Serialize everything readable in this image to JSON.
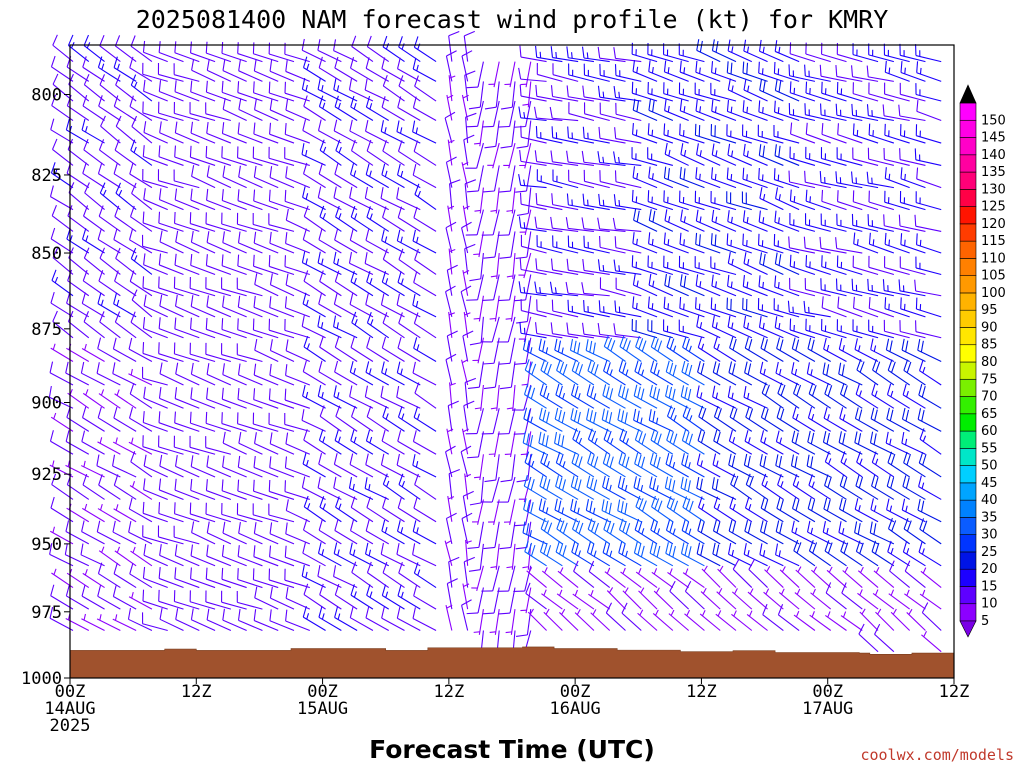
{
  "chart_data": {
    "type": "wind-barb-profile",
    "title": "2025081400 NAM forecast wind profile (kt) for KMRY",
    "xlabel": "Forecast Time (UTC)",
    "ylabel": "",
    "credit": "coolwx.com/models",
    "x_range_hours": [
      0,
      84
    ],
    "y_range_hpa": [
      1000,
      785
    ],
    "y_scale": "log-pressure",
    "y_ticks": [
      {
        "value": 800,
        "label": "800"
      },
      {
        "value": 825,
        "label": "825"
      },
      {
        "value": 850,
        "label": "850"
      },
      {
        "value": 875,
        "label": "875"
      },
      {
        "value": 900,
        "label": "900"
      },
      {
        "value": 925,
        "label": "925"
      },
      {
        "value": 950,
        "label": "950"
      },
      {
        "value": 975,
        "label": "975"
      },
      {
        "value": 1000,
        "label": "1000"
      }
    ],
    "x_ticks": [
      {
        "hour": 0,
        "line1": "00Z",
        "line2": "14AUG",
        "line3": "2025"
      },
      {
        "hour": 12,
        "line1": "12Z",
        "line2": "",
        "line3": ""
      },
      {
        "hour": 24,
        "line1": "00Z",
        "line2": "15AUG",
        "line3": ""
      },
      {
        "hour": 36,
        "line1": "12Z",
        "line2": "",
        "line3": ""
      },
      {
        "hour": 48,
        "line1": "00Z",
        "line2": "16AUG",
        "line3": ""
      },
      {
        "hour": 60,
        "line1": "12Z",
        "line2": "",
        "line3": ""
      },
      {
        "hour": 72,
        "line1": "00Z",
        "line2": "17AUG",
        "line3": ""
      },
      {
        "hour": 84,
        "line1": "12Z",
        "line2": "",
        "line3": ""
      }
    ],
    "surface_pressure": {
      "hours": [
        0,
        6,
        9,
        10,
        12,
        18,
        21,
        27,
        30,
        34,
        43,
        46,
        52,
        54,
        58,
        61,
        63,
        67,
        69,
        75,
        76,
        79,
        80,
        84
      ],
      "hpa": [
        989.5,
        989.5,
        989,
        989,
        989.5,
        989.5,
        988.8,
        988.8,
        989.5,
        988.5,
        988.2,
        988.8,
        989.4,
        989.4,
        990.0,
        990.0,
        989.6,
        990.3,
        990.3,
        990.5,
        991.0,
        991.0,
        990.5,
        991.5
      ]
    },
    "colorbar": {
      "labels": [
        "5",
        "10",
        "15",
        "20",
        "25",
        "30",
        "35",
        "40",
        "45",
        "50",
        "55",
        "60",
        "65",
        "70",
        "75",
        "80",
        "85",
        "90",
        "95",
        "100",
        "105",
        "110",
        "115",
        "120",
        "125",
        "130",
        "135",
        "140",
        "145",
        "150"
      ],
      "colors": [
        "#8c00ff",
        "#5e00ff",
        "#1c00ff",
        "#0014e6",
        "#0035ff",
        "#0a5cff",
        "#0082ff",
        "#00a5ff",
        "#00cfff",
        "#00e6c8",
        "#00ee78",
        "#00ee00",
        "#33f000",
        "#7af000",
        "#c8f500",
        "#ffff00",
        "#ffe600",
        "#ffcc00",
        "#ffb300",
        "#ff9900",
        "#ff8000",
        "#ff6400",
        "#ff3c00",
        "#ff1400",
        "#ff0046",
        "#ff0078",
        "#ff00a0",
        "#ff00c8",
        "#ff00e6",
        "#ff00ff"
      ],
      "lower_arrow_color": "#7a00e6",
      "upper_arrow_color": "#000000"
    },
    "surface_color": "#a0522d",
    "columns_hours_step": 1.5,
    "levels_hpa": [
      790,
      796,
      802,
      808,
      815,
      822,
      829,
      836,
      843,
      850,
      857,
      864,
      871,
      878,
      886,
      894,
      902,
      910,
      918,
      926,
      934,
      942,
      950,
      958,
      966,
      974,
      982,
      990,
      998
    ],
    "wind_regimes": [
      {
        "hours": [
          0,
          9
        ],
        "levels": [
          785,
          880
        ],
        "dir_deg": 305,
        "speed_kt": 13
      },
      {
        "hours": [
          0,
          9
        ],
        "levels": [
          880,
          1000
        ],
        "dir_deg": 300,
        "speed_kt": 10
      },
      {
        "hours": [
          9,
          24
        ],
        "levels": [
          785,
          1000
        ],
        "dir_deg": 290,
        "speed_kt": 12
      },
      {
        "hours": [
          24,
          36
        ],
        "levels": [
          785,
          1000
        ],
        "dir_deg": 300,
        "speed_kt": 14
      },
      {
        "hours": [
          36,
          38
        ],
        "levels": [
          785,
          1000
        ],
        "dir_deg": 350,
        "speed_kt": 10
      },
      {
        "hours": [
          38,
          45
        ],
        "levels": [
          785,
          1000
        ],
        "dir_deg": 190,
        "speed_kt": 10
      },
      {
        "hours": [
          45,
          55
        ],
        "levels": [
          785,
          880
        ],
        "dir_deg": 280,
        "speed_kt": 14
      },
      {
        "hours": [
          45,
          61
        ],
        "levels": [
          880,
          960
        ],
        "dir_deg": 300,
        "speed_kt": 30
      },
      {
        "hours": [
          55,
          70
        ],
        "levels": [
          785,
          880
        ],
        "dir_deg": 290,
        "speed_kt": 18
      },
      {
        "hours": [
          61,
          84
        ],
        "levels": [
          880,
          960
        ],
        "dir_deg": 300,
        "speed_kt": 20
      },
      {
        "hours": [
          70,
          84
        ],
        "levels": [
          785,
          880
        ],
        "dir_deg": 285,
        "speed_kt": 15
      },
      {
        "hours": [
          45,
          84
        ],
        "levels": [
          960,
          1000
        ],
        "dir_deg": 310,
        "speed_kt": 8
      }
    ]
  }
}
